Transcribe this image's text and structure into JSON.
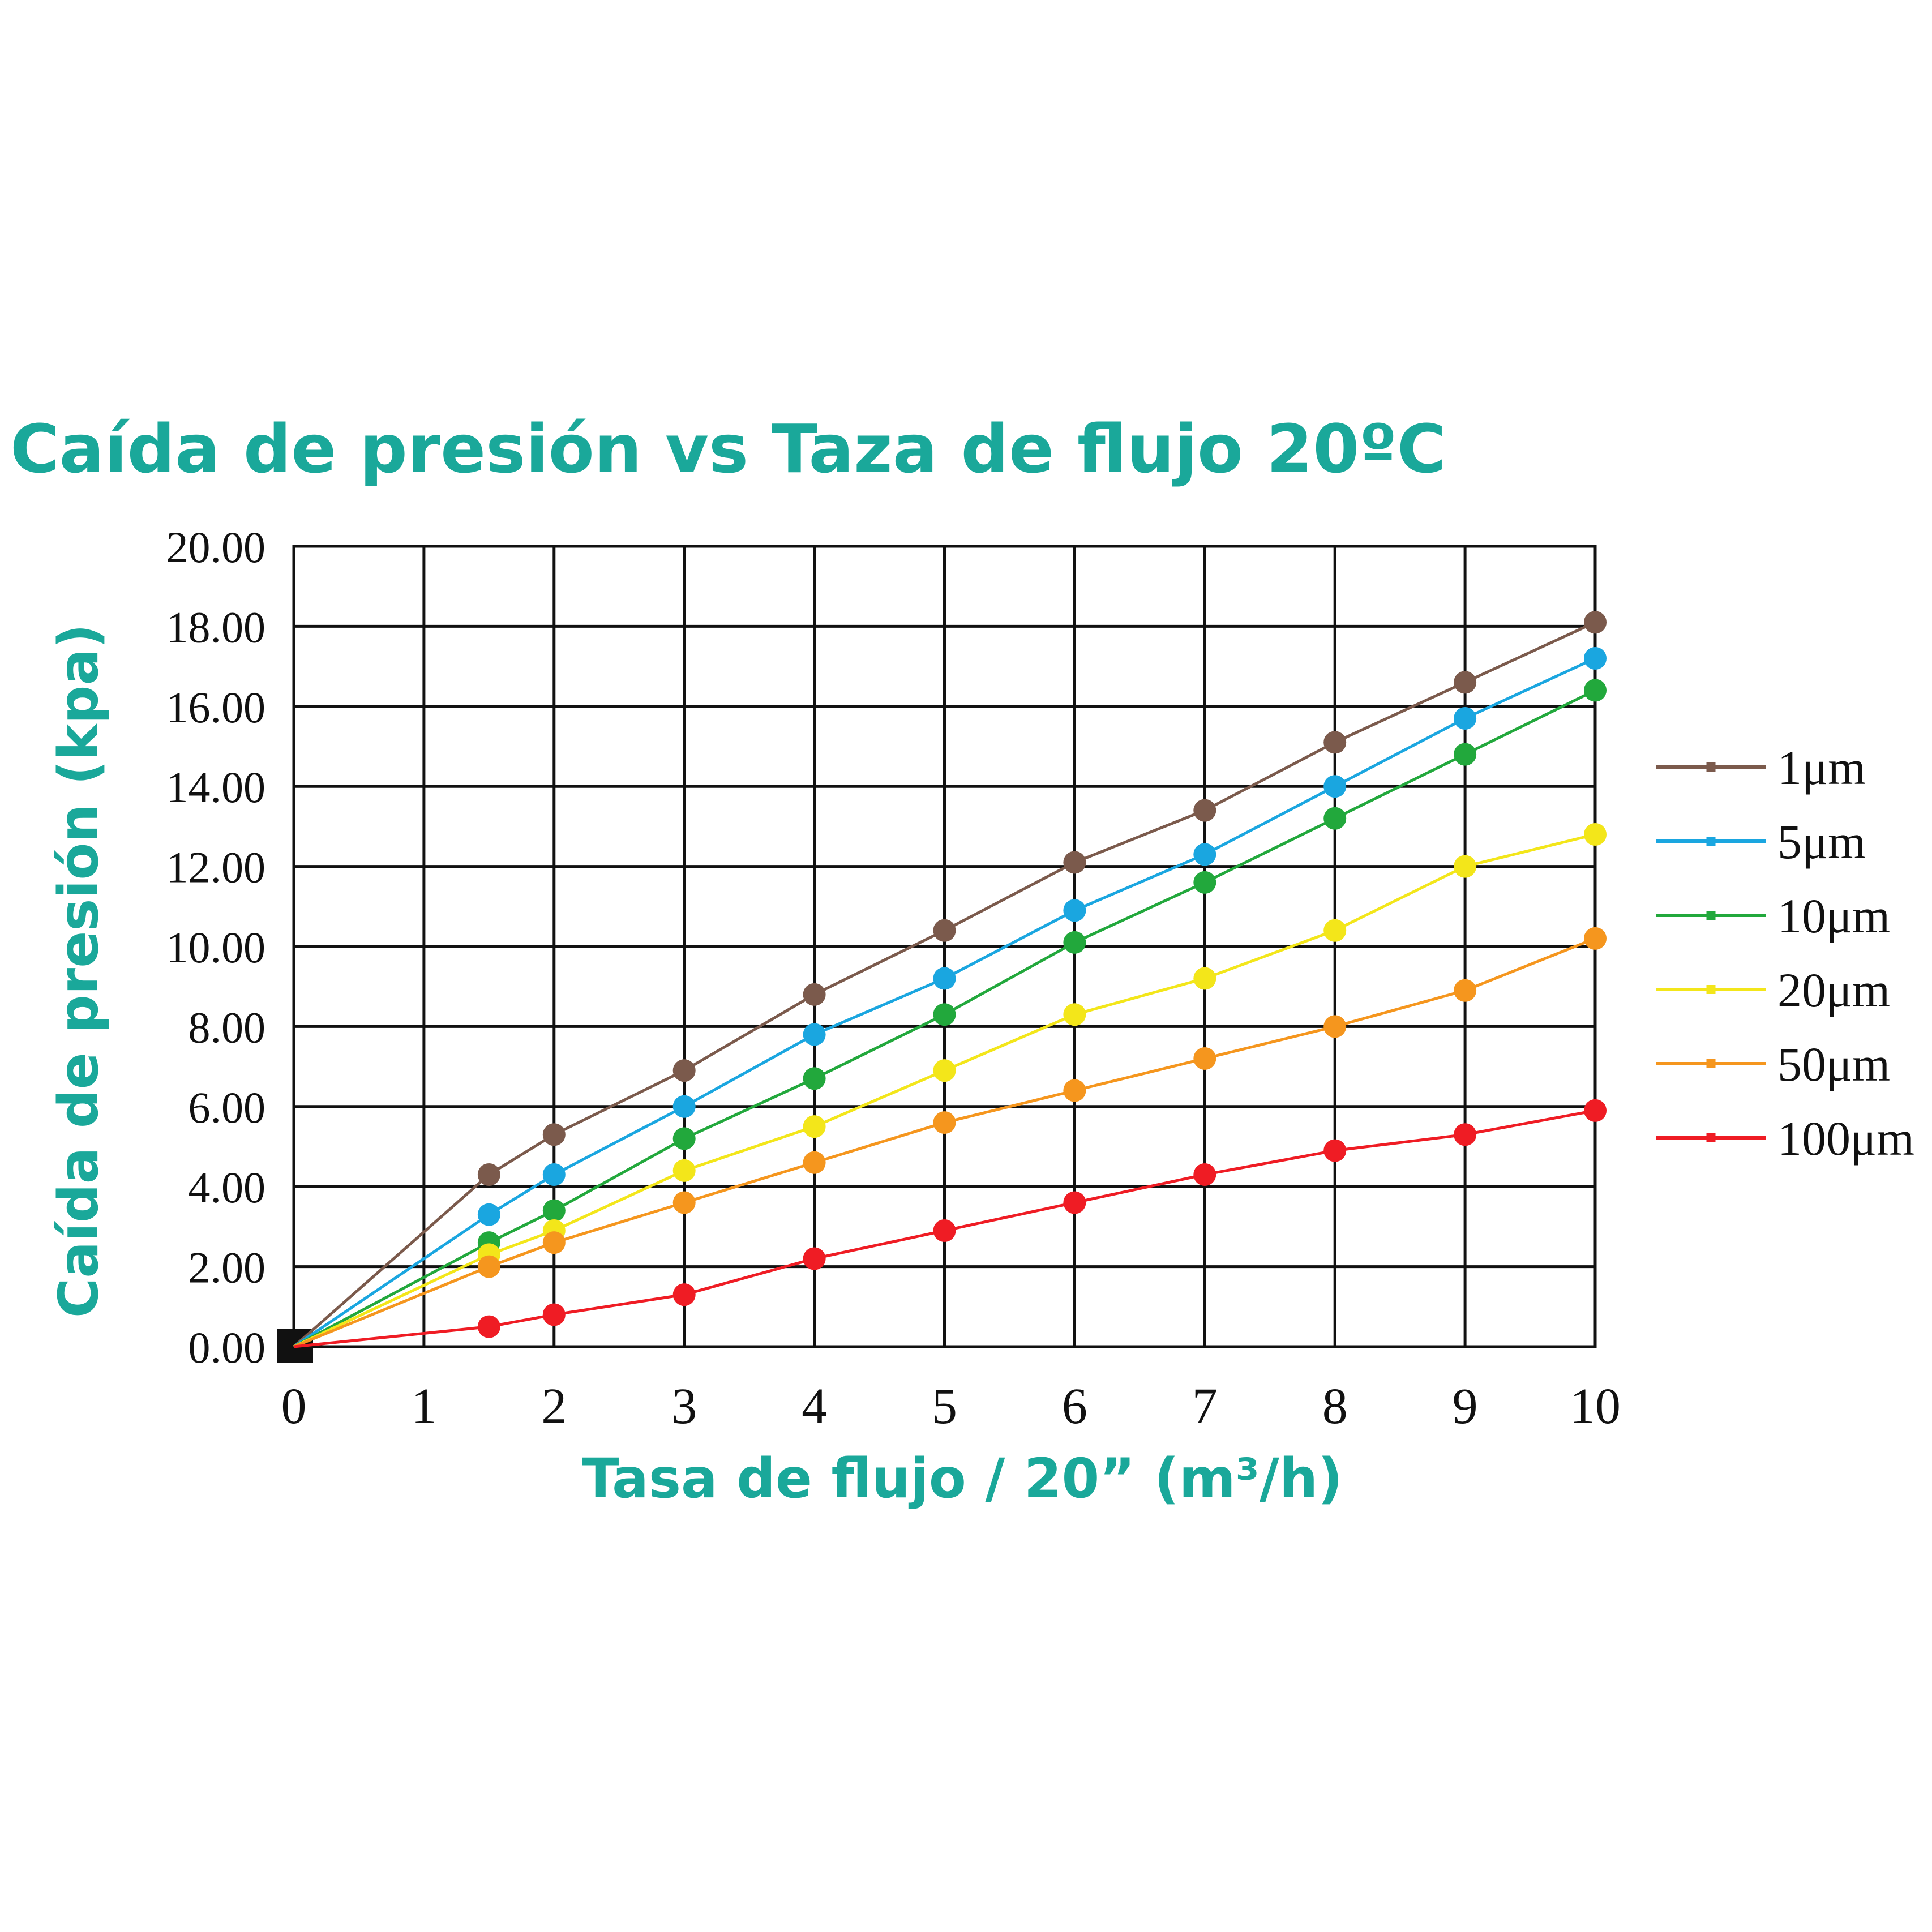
{
  "chart_data": {
    "type": "line",
    "title": "Caída de presión vs Taza de flujo 20ºC",
    "xlabel": "Tasa de flujo / 20” (m³/h)",
    "ylabel": "Caída de presión (kpa)",
    "xlim": [
      0,
      10
    ],
    "ylim": [
      0,
      20
    ],
    "x_ticks": [
      "0",
      "1",
      "2",
      "3",
      "4",
      "5",
      "6",
      "7",
      "8",
      "9",
      "10"
    ],
    "y_ticks": [
      "0.00",
      "2.00",
      "4.00",
      "6.00",
      "8.00",
      "10.00",
      "12.00",
      "14.00",
      "16.00",
      "18.00",
      "20.00"
    ],
    "grid": true,
    "legend_position": "right",
    "x": [
      0,
      1.5,
      2,
      3,
      4,
      5,
      6,
      7,
      8,
      9,
      10
    ],
    "series": [
      {
        "name": "1μm",
        "color": "#7b5a4c",
        "values": [
          0,
          4.3,
          5.3,
          6.9,
          8.8,
          10.4,
          12.1,
          13.4,
          15.1,
          16.6,
          18.1
        ]
      },
      {
        "name": "5μm",
        "color": "#1aa6e0",
        "values": [
          0,
          3.3,
          4.3,
          6.0,
          7.8,
          9.2,
          10.9,
          12.3,
          14.0,
          15.7,
          17.2
        ]
      },
      {
        "name": "10μm",
        "color": "#22a83c",
        "values": [
          0,
          2.6,
          3.4,
          5.2,
          6.7,
          8.3,
          10.1,
          11.6,
          13.2,
          14.8,
          16.4
        ]
      },
      {
        "name": "20μm",
        "color": "#f3e61a",
        "values": [
          0,
          2.3,
          2.9,
          4.4,
          5.5,
          6.9,
          8.3,
          9.2,
          10.4,
          12.0,
          12.8
        ]
      },
      {
        "name": "50μm",
        "color": "#f5961e",
        "values": [
          0,
          2.0,
          2.6,
          3.6,
          4.6,
          5.6,
          6.4,
          7.2,
          8.0,
          8.9,
          10.2
        ]
      },
      {
        "name": "100μm",
        "color": "#ef1c24",
        "values": [
          0,
          0.5,
          0.8,
          1.3,
          2.2,
          2.9,
          3.6,
          4.3,
          4.9,
          5.3,
          5.9
        ]
      }
    ]
  }
}
